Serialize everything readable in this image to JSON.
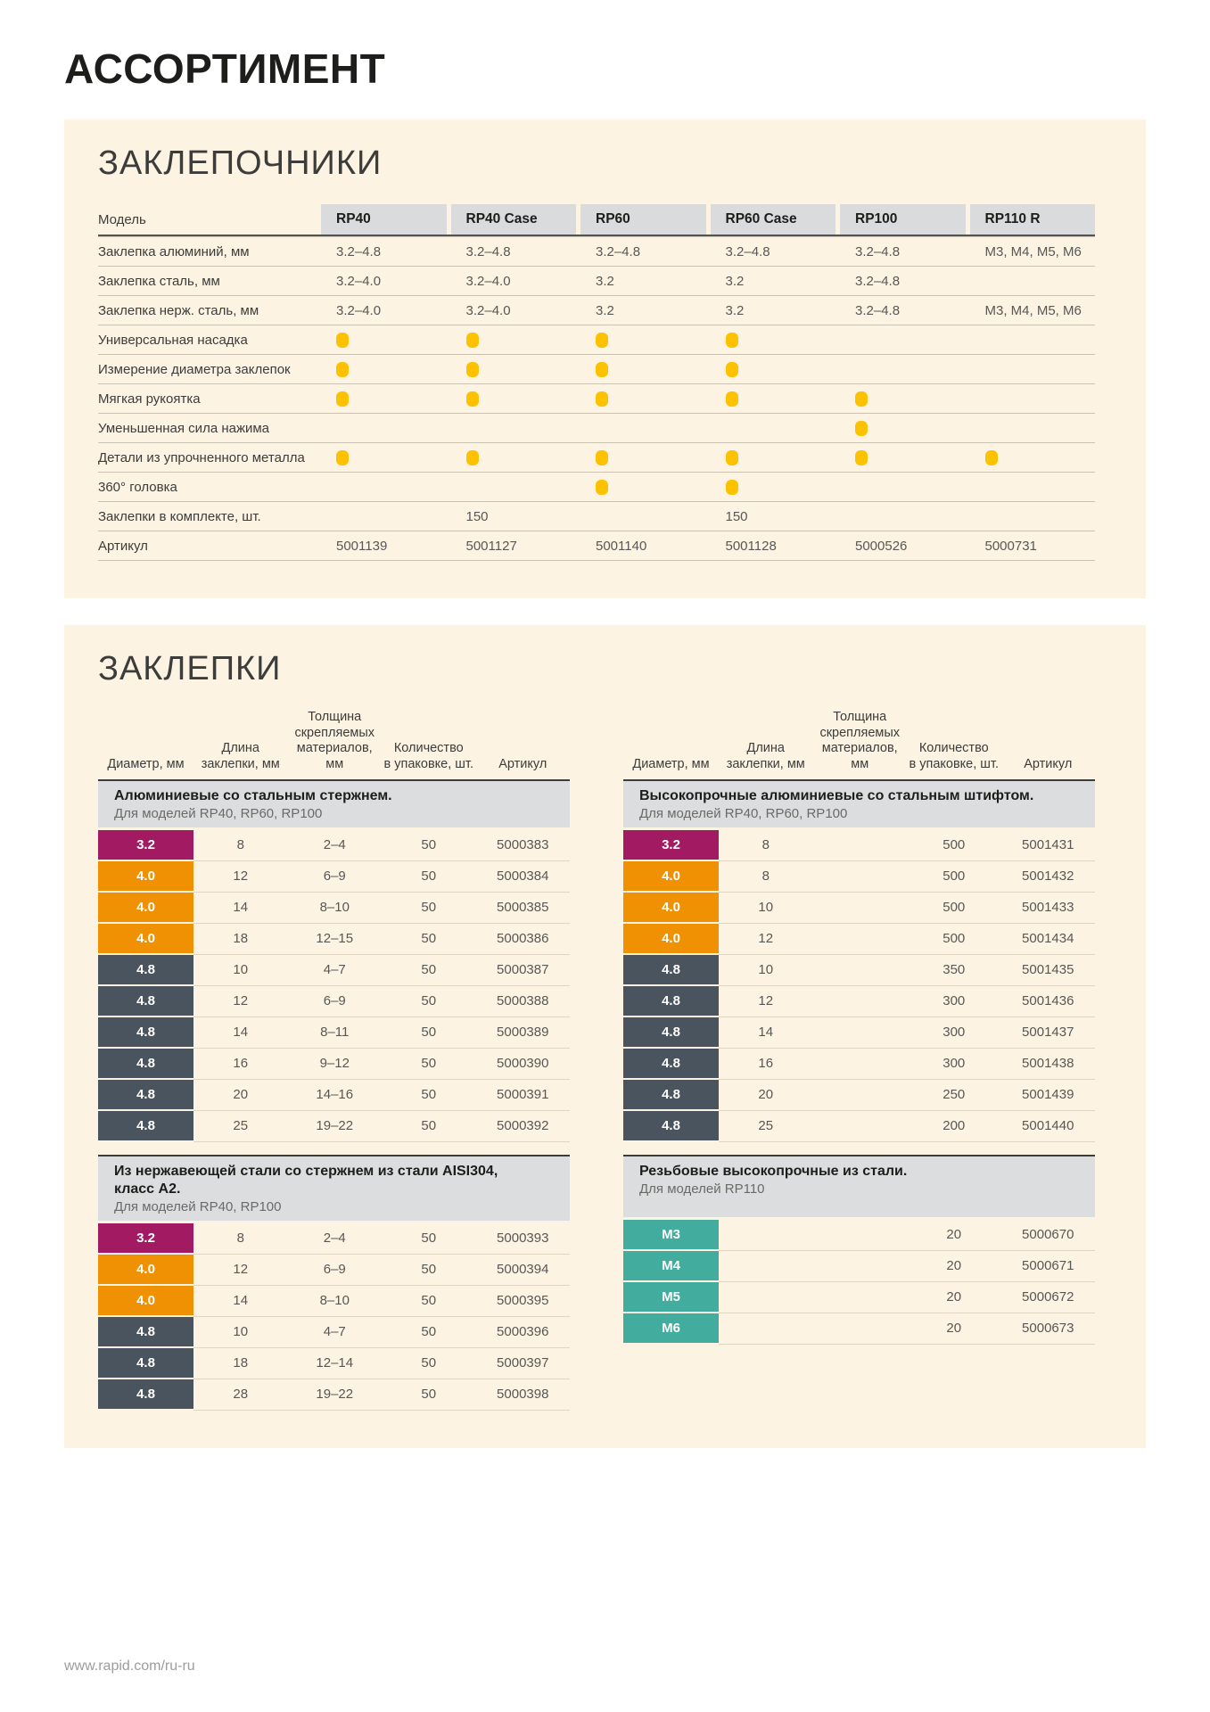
{
  "page": {
    "title": "АССОРТИМЕНТ",
    "footer_url": "www.rapid.com/ru-ru"
  },
  "colors": {
    "panel_bg": "#fdf3e2",
    "header_cell_bg": "#d9dbdd",
    "band_bg": "#dcddde",
    "dot": "#fcc200",
    "magenta": "#a21a61",
    "orange": "#ef9103",
    "slate": "#4a545e",
    "teal": "#42ac9e",
    "title_text": "#1d1d1b",
    "label_text": "#3c3c3b",
    "value_text": "#575756",
    "footer_text": "#9d9d9c"
  },
  "riveters": {
    "section_title": "ЗАКЛЕПОЧНИКИ",
    "model_header": "Модель",
    "models": [
      "RP40",
      "RP40 Case",
      "RP60",
      "RP60 Case",
      "RP100",
      "RP110 R"
    ],
    "rows": [
      {
        "label": "Заклепка алюминий, мм",
        "values": [
          "3.2–4.8",
          "3.2–4.8",
          "3.2–4.8",
          "3.2–4.8",
          "3.2–4.8",
          "M3, M4, M5, M6"
        ]
      },
      {
        "label": "Заклепка сталь, мм",
        "values": [
          "3.2–4.0",
          "3.2–4.0",
          "3.2",
          "3.2",
          "3.2–4.8",
          ""
        ]
      },
      {
        "label": "Заклепка нерж. сталь, мм",
        "values": [
          "3.2–4.0",
          "3.2–4.0",
          "3.2",
          "3.2",
          "3.2–4.8",
          "M3, M4, M5, M6"
        ]
      },
      {
        "label": "Универсальная насадка",
        "values": [
          true,
          true,
          true,
          true,
          "",
          ""
        ]
      },
      {
        "label": "Измерение диаметра заклепок",
        "values": [
          true,
          true,
          true,
          true,
          "",
          ""
        ]
      },
      {
        "label": "Мягкая рукоятка",
        "values": [
          true,
          true,
          true,
          true,
          true,
          ""
        ]
      },
      {
        "label": "Уменьшенная сила нажима",
        "values": [
          "",
          "",
          "",
          "",
          true,
          ""
        ]
      },
      {
        "label": "Детали из упрочненного металла",
        "values": [
          true,
          true,
          true,
          true,
          true,
          true
        ]
      },
      {
        "label": "360° головка",
        "values": [
          "",
          "",
          true,
          true,
          "",
          ""
        ]
      },
      {
        "label": "Заклепки в комплекте, шт.",
        "values": [
          "",
          "150",
          "",
          "150",
          "",
          ""
        ]
      },
      {
        "label": "Артикул",
        "values": [
          "5001139",
          "5001127",
          "5001140",
          "5001128",
          "5000526",
          "5000731"
        ]
      }
    ]
  },
  "rivets": {
    "section_title": "ЗАКЛЕПКИ",
    "col_headers": [
      "Диаметр, мм",
      "Длина\nзаклепки, мм",
      "Толщина\nскрепляемых\nматериалов, мм",
      "Количество\nв упаковке, шт.",
      "Артикул"
    ],
    "tables": [
      {
        "title": "Алюминиевые со стальным стержнем.",
        "models_note": "Для моделей RP40, RP60, RP100",
        "has_column_headers": true,
        "rows": [
          {
            "diameter": "3.2",
            "tone": "magenta",
            "length": "8",
            "thickness": "2–4",
            "qty": "50",
            "sku": "5000383"
          },
          {
            "diameter": "4.0",
            "tone": "orange",
            "length": "12",
            "thickness": "6–9",
            "qty": "50",
            "sku": "5000384"
          },
          {
            "diameter": "4.0",
            "tone": "orange",
            "length": "14",
            "thickness": "8–10",
            "qty": "50",
            "sku": "5000385"
          },
          {
            "diameter": "4.0",
            "tone": "orange",
            "length": "18",
            "thickness": "12–15",
            "qty": "50",
            "sku": "5000386"
          },
          {
            "diameter": "4.8",
            "tone": "slate",
            "length": "10",
            "thickness": "4–7",
            "qty": "50",
            "sku": "5000387"
          },
          {
            "diameter": "4.8",
            "tone": "slate",
            "length": "12",
            "thickness": "6–9",
            "qty": "50",
            "sku": "5000388"
          },
          {
            "diameter": "4.8",
            "tone": "slate",
            "length": "14",
            "thickness": "8–11",
            "qty": "50",
            "sku": "5000389"
          },
          {
            "diameter": "4.8",
            "tone": "slate",
            "length": "16",
            "thickness": "9–12",
            "qty": "50",
            "sku": "5000390"
          },
          {
            "diameter": "4.8",
            "tone": "slate",
            "length": "20",
            "thickness": "14–16",
            "qty": "50",
            "sku": "5000391"
          },
          {
            "diameter": "4.8",
            "tone": "slate",
            "length": "25",
            "thickness": "19–22",
            "qty": "50",
            "sku": "5000392"
          }
        ]
      },
      {
        "title": "Высокопрочные алюминиевые со стальным штифтом.",
        "models_note": "Для моделей RP40, RP60, RP100",
        "has_column_headers": true,
        "rows": [
          {
            "diameter": "3.2",
            "tone": "magenta",
            "length": "8",
            "thickness": "",
            "qty": "500",
            "sku": "5001431"
          },
          {
            "diameter": "4.0",
            "tone": "orange",
            "length": "8",
            "thickness": "",
            "qty": "500",
            "sku": "5001432"
          },
          {
            "diameter": "4.0",
            "tone": "orange",
            "length": "10",
            "thickness": "",
            "qty": "500",
            "sku": "5001433"
          },
          {
            "diameter": "4.0",
            "tone": "orange",
            "length": "12",
            "thickness": "",
            "qty": "500",
            "sku": "5001434"
          },
          {
            "diameter": "4.8",
            "tone": "slate",
            "length": "10",
            "thickness": "",
            "qty": "350",
            "sku": "5001435"
          },
          {
            "diameter": "4.8",
            "tone": "slate",
            "length": "12",
            "thickness": "",
            "qty": "300",
            "sku": "5001436"
          },
          {
            "diameter": "4.8",
            "tone": "slate",
            "length": "14",
            "thickness": "",
            "qty": "300",
            "sku": "5001437"
          },
          {
            "diameter": "4.8",
            "tone": "slate",
            "length": "16",
            "thickness": "",
            "qty": "300",
            "sku": "5001438"
          },
          {
            "diameter": "4.8",
            "tone": "slate",
            "length": "20",
            "thickness": "",
            "qty": "250",
            "sku": "5001439"
          },
          {
            "diameter": "4.8",
            "tone": "slate",
            "length": "25",
            "thickness": "",
            "qty": "200",
            "sku": "5001440"
          }
        ]
      },
      {
        "title": "Из нержавеющей стали со стержнем из стали AISI304, класс А2.",
        "models_note": "Для моделей RP40, RP100",
        "has_column_headers": false,
        "rows": [
          {
            "diameter": "3.2",
            "tone": "magenta",
            "length": "8",
            "thickness": "2–4",
            "qty": "50",
            "sku": "5000393"
          },
          {
            "diameter": "4.0",
            "tone": "orange",
            "length": "12",
            "thickness": "6–9",
            "qty": "50",
            "sku": "5000394"
          },
          {
            "diameter": "4.0",
            "tone": "orange",
            "length": "14",
            "thickness": "8–10",
            "qty": "50",
            "sku": "5000395"
          },
          {
            "diameter": "4.8",
            "tone": "slate",
            "length": "10",
            "thickness": "4–7",
            "qty": "50",
            "sku": "5000396"
          },
          {
            "diameter": "4.8",
            "tone": "slate",
            "length": "18",
            "thickness": "12–14",
            "qty": "50",
            "sku": "5000397"
          },
          {
            "diameter": "4.8",
            "tone": "slate",
            "length": "28",
            "thickness": "19–22",
            "qty": "50",
            "sku": "5000398"
          }
        ]
      },
      {
        "title": "Резьбовые высокопрочные из стали.",
        "models_note": "Для моделей RP110",
        "has_column_headers": false,
        "rows": [
          {
            "diameter": "M3",
            "tone": "teal",
            "length": "",
            "thickness": "",
            "qty": "20",
            "sku": "5000670"
          },
          {
            "diameter": "M4",
            "tone": "teal",
            "length": "",
            "thickness": "",
            "qty": "20",
            "sku": "5000671"
          },
          {
            "diameter": "M5",
            "tone": "teal",
            "length": "",
            "thickness": "",
            "qty": "20",
            "sku": "5000672"
          },
          {
            "diameter": "M6",
            "tone": "teal",
            "length": "",
            "thickness": "",
            "qty": "20",
            "sku": "5000673"
          }
        ]
      }
    ]
  }
}
